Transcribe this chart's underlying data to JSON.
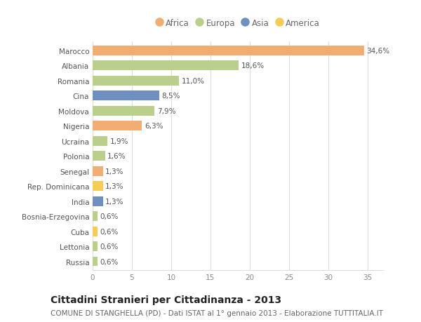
{
  "categories": [
    "Marocco",
    "Albania",
    "Romania",
    "Cina",
    "Moldova",
    "Nigeria",
    "Ucraina",
    "Polonia",
    "Senegal",
    "Rep. Dominicana",
    "India",
    "Bosnia-Erzegovina",
    "Cuba",
    "Lettonia",
    "Russia"
  ],
  "values": [
    34.6,
    18.6,
    11.0,
    8.5,
    7.9,
    6.3,
    1.9,
    1.6,
    1.3,
    1.3,
    1.3,
    0.6,
    0.6,
    0.6,
    0.6
  ],
  "labels": [
    "34,6%",
    "18,6%",
    "11,0%",
    "8,5%",
    "7,9%",
    "6,3%",
    "1,9%",
    "1,6%",
    "1,3%",
    "1,3%",
    "1,3%",
    "0,6%",
    "0,6%",
    "0,6%",
    "0,6%"
  ],
  "continents": [
    "Africa",
    "Europa",
    "Europa",
    "Asia",
    "Europa",
    "Africa",
    "Europa",
    "Europa",
    "Africa",
    "America",
    "Asia",
    "Europa",
    "America",
    "Europa",
    "Europa"
  ],
  "continent_colors": {
    "Africa": "#F2AE72",
    "Europa": "#BACF8C",
    "Asia": "#6E8FBF",
    "America": "#F5CC55"
  },
  "legend_order": [
    "Africa",
    "Europa",
    "Asia",
    "America"
  ],
  "title": "Cittadini Stranieri per Cittadinanza - 2013",
  "subtitle": "COMUNE DI STANGHELLA (PD) - Dati ISTAT al 1° gennaio 2013 - Elaborazione TUTTITALIA.IT",
  "xlim": [
    0,
    37
  ],
  "xticks": [
    0,
    5,
    10,
    15,
    20,
    25,
    30,
    35
  ],
  "background_color": "#ffffff",
  "grid_color": "#dddddd",
  "bar_height": 0.65,
  "title_fontsize": 10,
  "subtitle_fontsize": 7.5,
  "label_fontsize": 7.5,
  "tick_fontsize": 7.5,
  "legend_fontsize": 8.5
}
